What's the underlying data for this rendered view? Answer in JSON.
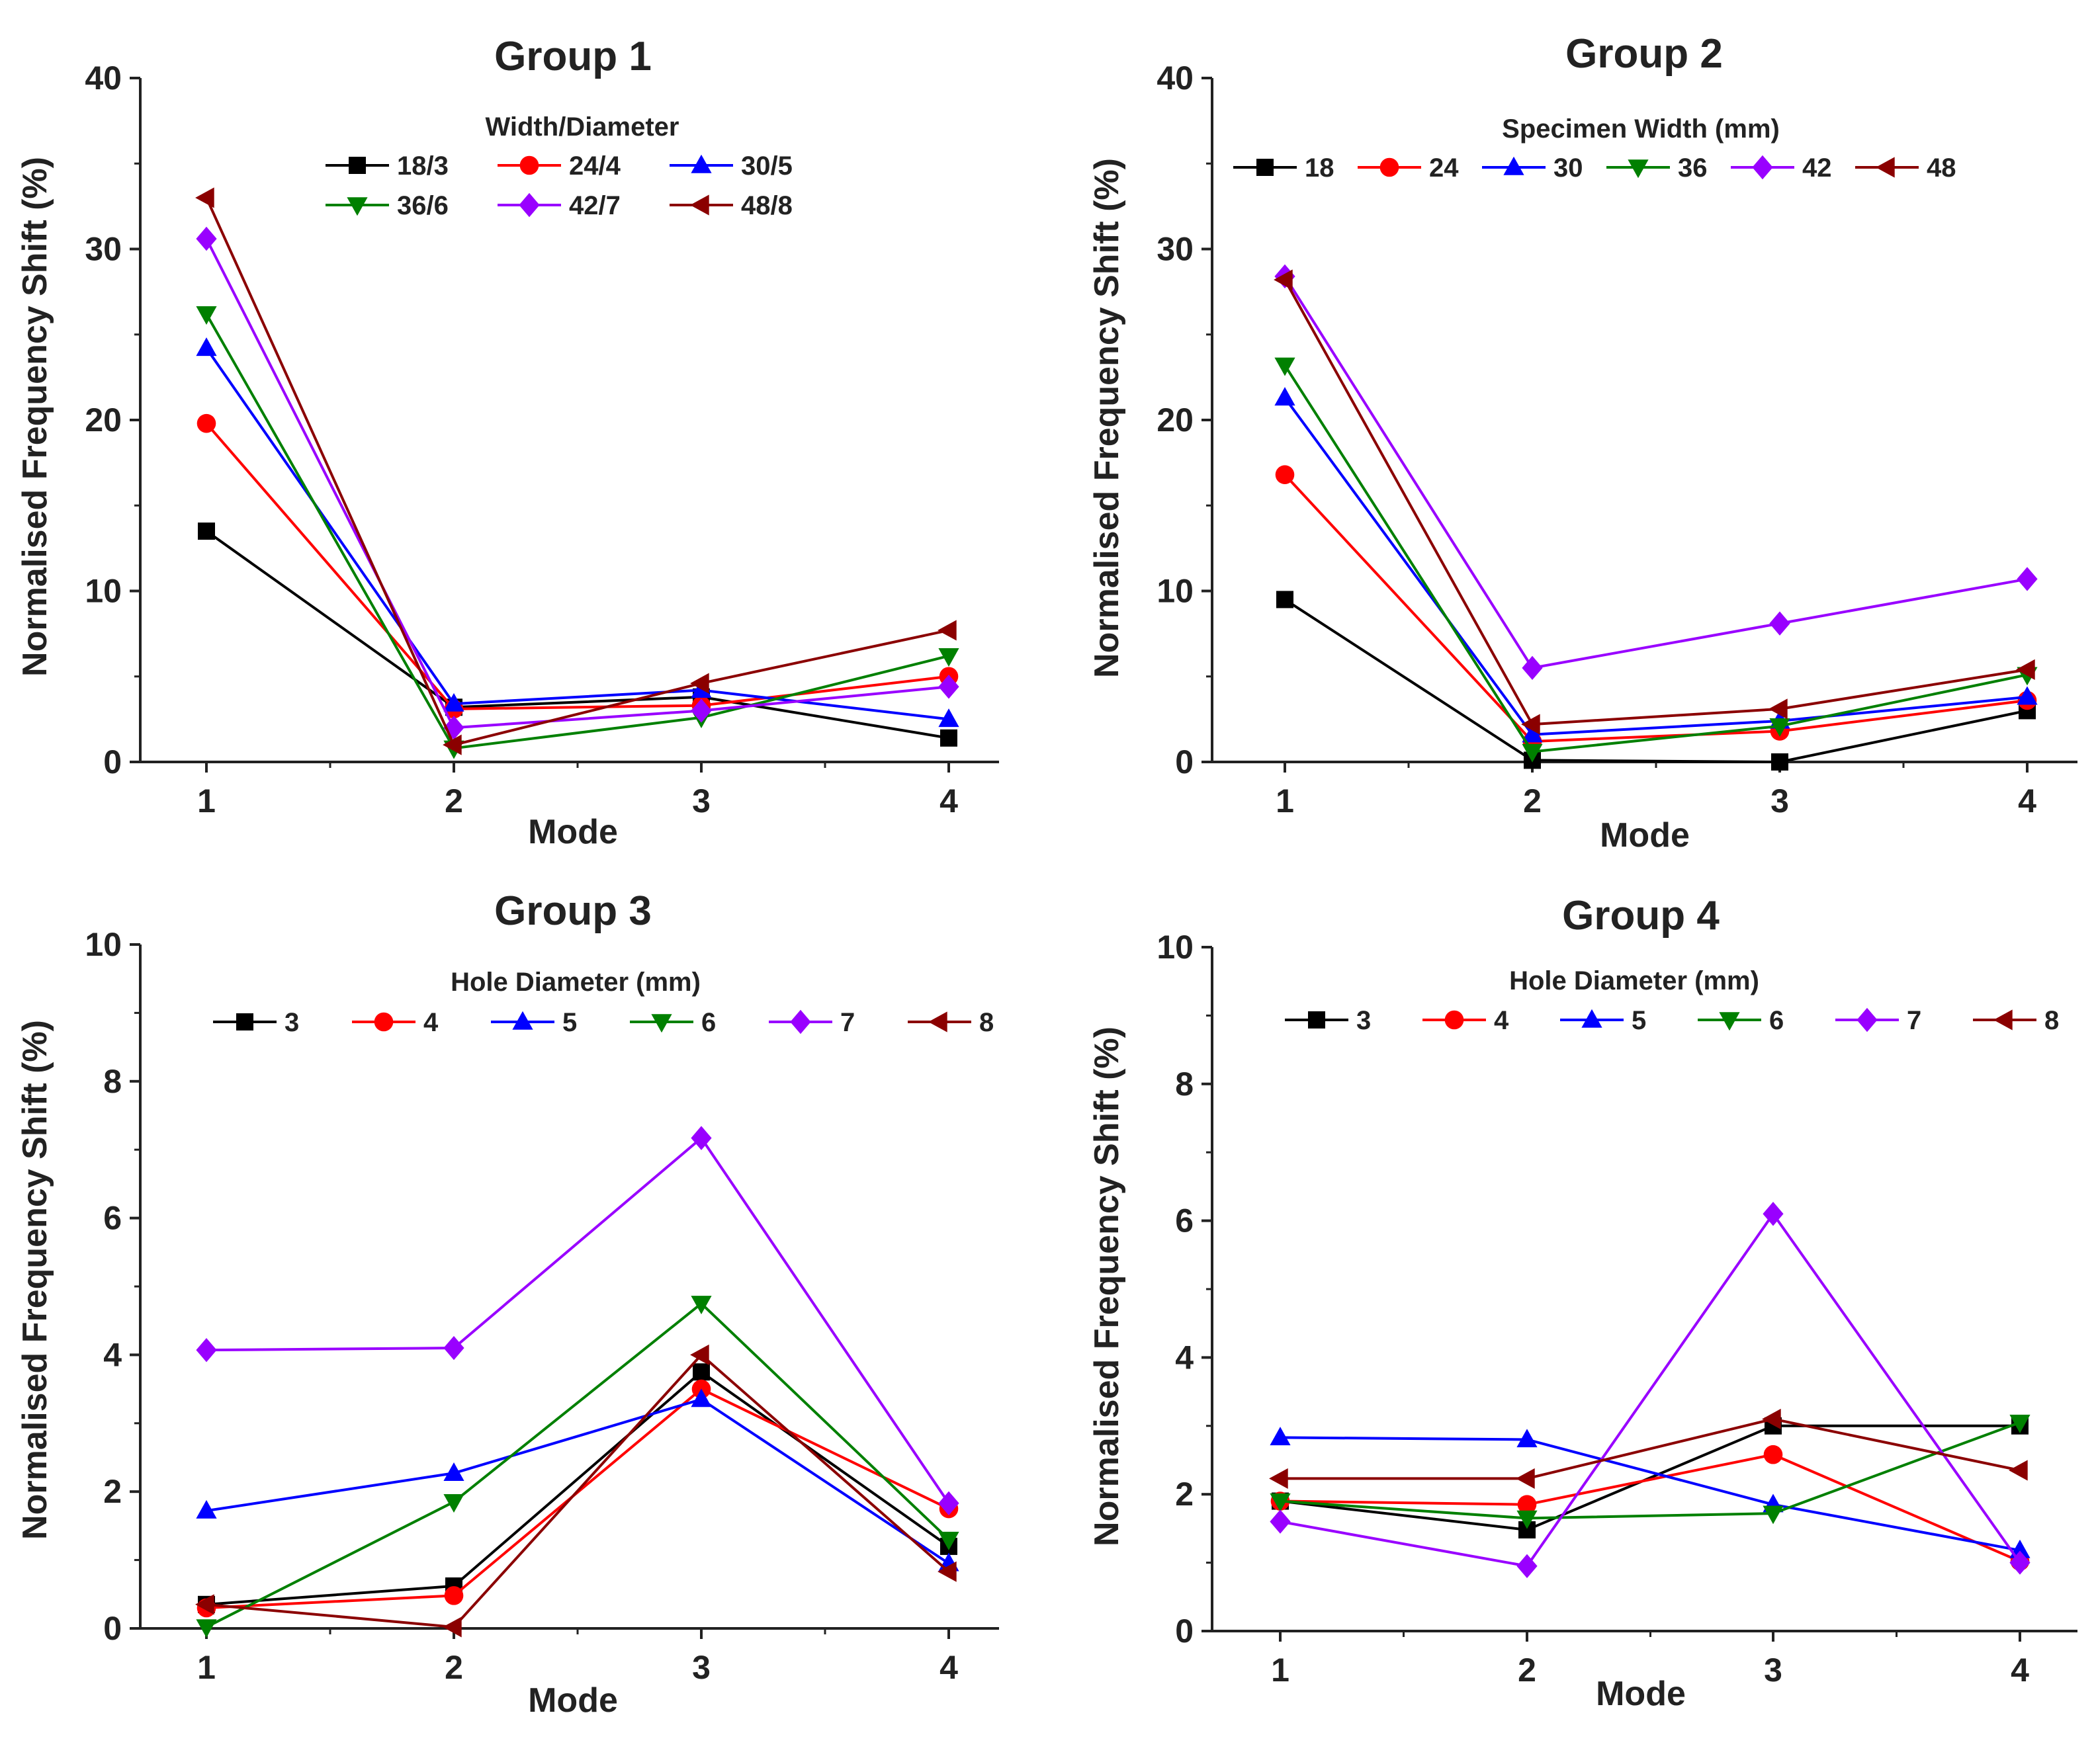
{
  "chart_data": [
    {
      "type": "line",
      "title": "Group 1",
      "xlabel": "Mode",
      "ylabel": "Normalised Frequency Shift (%)",
      "x": [
        1,
        2,
        3,
        4
      ],
      "xticks": [
        "1",
        "2",
        "3",
        "4"
      ],
      "yticks": [
        "0",
        "10",
        "20",
        "30",
        "40"
      ],
      "ylim": [
        0,
        40
      ],
      "legend_title": "Width/Diameter",
      "legend_columns": 3,
      "series": [
        {
          "name": "18/3",
          "color": "#000000",
          "marker": "square",
          "values": [
            13.5,
            3.2,
            3.8,
            1.4
          ]
        },
        {
          "name": "24/4",
          "color": "#ff0000",
          "marker": "circle",
          "values": [
            19.8,
            3.1,
            3.3,
            5.0
          ]
        },
        {
          "name": "30/5",
          "color": "#0000ff",
          "marker": "triangle-up",
          "values": [
            24.2,
            3.4,
            4.2,
            2.5
          ]
        },
        {
          "name": "36/6",
          "color": "#008000",
          "marker": "triangle-down",
          "values": [
            26.2,
            0.8,
            2.6,
            6.2
          ]
        },
        {
          "name": "42/7",
          "color": "#9900ff",
          "marker": "diamond",
          "values": [
            30.6,
            2.0,
            3.0,
            4.4
          ]
        },
        {
          "name": "48/8",
          "color": "#8b0000",
          "marker": "triangle-left",
          "values": [
            33.0,
            1.0,
            4.6,
            7.7
          ]
        }
      ]
    },
    {
      "type": "line",
      "title": "Group 2",
      "xlabel": "Mode",
      "ylabel": "Normalised Frequency Shift (%)",
      "x": [
        1,
        2,
        3,
        4
      ],
      "xticks": [
        "1",
        "2",
        "3",
        "4"
      ],
      "yticks": [
        "0",
        "10",
        "20",
        "30",
        "40"
      ],
      "ylim": [
        0,
        40
      ],
      "legend_title": "Specimen Width (mm)",
      "legend_columns": 6,
      "series": [
        {
          "name": "18",
          "color": "#000000",
          "marker": "square",
          "values": [
            9.5,
            0.1,
            0.0,
            3.0
          ]
        },
        {
          "name": "24",
          "color": "#ff0000",
          "marker": "circle",
          "values": [
            16.8,
            1.2,
            1.8,
            3.6
          ]
        },
        {
          "name": "30",
          "color": "#0000ff",
          "marker": "triangle-up",
          "values": [
            21.3,
            1.6,
            2.4,
            3.8
          ]
        },
        {
          "name": "36",
          "color": "#008000",
          "marker": "triangle-down",
          "values": [
            23.2,
            0.6,
            2.1,
            5.1
          ]
        },
        {
          "name": "42",
          "color": "#9900ff",
          "marker": "diamond",
          "values": [
            28.4,
            5.5,
            8.1,
            10.7
          ]
        },
        {
          "name": "48",
          "color": "#8b0000",
          "marker": "triangle-left",
          "values": [
            28.2,
            2.2,
            3.1,
            5.4
          ]
        }
      ]
    },
    {
      "type": "line",
      "title": "Group 3",
      "xlabel": "Mode",
      "ylabel": "Normalised Frequency Shift (%)",
      "x": [
        1,
        2,
        3,
        4
      ],
      "xticks": [
        "1",
        "2",
        "3",
        "4"
      ],
      "yticks": [
        "0",
        "2",
        "4",
        "6",
        "8",
        "10"
      ],
      "ylim": [
        0,
        10
      ],
      "legend_title": "Hole Diameter (mm)",
      "legend_columns": 6,
      "series": [
        {
          "name": "3",
          "color": "#000000",
          "marker": "square",
          "values": [
            0.35,
            0.62,
            3.75,
            1.2
          ]
        },
        {
          "name": "4",
          "color": "#ff0000",
          "marker": "circle",
          "values": [
            0.3,
            0.48,
            3.5,
            1.75
          ]
        },
        {
          "name": "5",
          "color": "#0000ff",
          "marker": "triangle-up",
          "values": [
            1.72,
            2.27,
            3.35,
            0.95
          ]
        },
        {
          "name": "6",
          "color": "#008000",
          "marker": "triangle-down",
          "values": [
            0.02,
            1.85,
            4.75,
            1.3
          ]
        },
        {
          "name": "7",
          "color": "#9900ff",
          "marker": "diamond",
          "values": [
            4.07,
            4.1,
            7.17,
            1.83
          ]
        },
        {
          "name": "8",
          "color": "#8b0000",
          "marker": "triangle-left",
          "values": [
            0.35,
            0.02,
            4.0,
            0.83
          ]
        }
      ]
    },
    {
      "type": "line",
      "title": "Group 4",
      "xlabel": "Mode",
      "ylabel": "Normalised Frequency Shift (%)",
      "x": [
        1,
        2,
        3,
        4
      ],
      "xticks": [
        "1",
        "2",
        "3",
        "4"
      ],
      "yticks": [
        "0",
        "2",
        "4",
        "6",
        "8",
        "10"
      ],
      "ylim": [
        0,
        10
      ],
      "legend_title": "Hole Diameter (mm)",
      "legend_columns": 6,
      "series": [
        {
          "name": "3",
          "color": "#000000",
          "marker": "square",
          "values": [
            1.9,
            1.48,
            3.0,
            3.0
          ]
        },
        {
          "name": "4",
          "color": "#ff0000",
          "marker": "circle",
          "values": [
            1.9,
            1.85,
            2.58,
            1.02
          ]
        },
        {
          "name": "5",
          "color": "#0000ff",
          "marker": "triangle-up",
          "values": [
            2.83,
            2.8,
            1.85,
            1.18
          ]
        },
        {
          "name": "6",
          "color": "#008000",
          "marker": "triangle-down",
          "values": [
            1.9,
            1.65,
            1.72,
            3.05
          ]
        },
        {
          "name": "7",
          "color": "#9900ff",
          "marker": "diamond",
          "values": [
            1.6,
            0.95,
            6.1,
            1.0
          ]
        },
        {
          "name": "8",
          "color": "#8b0000",
          "marker": "triangle-left",
          "values": [
            2.23,
            2.23,
            3.1,
            2.35
          ]
        }
      ]
    }
  ]
}
